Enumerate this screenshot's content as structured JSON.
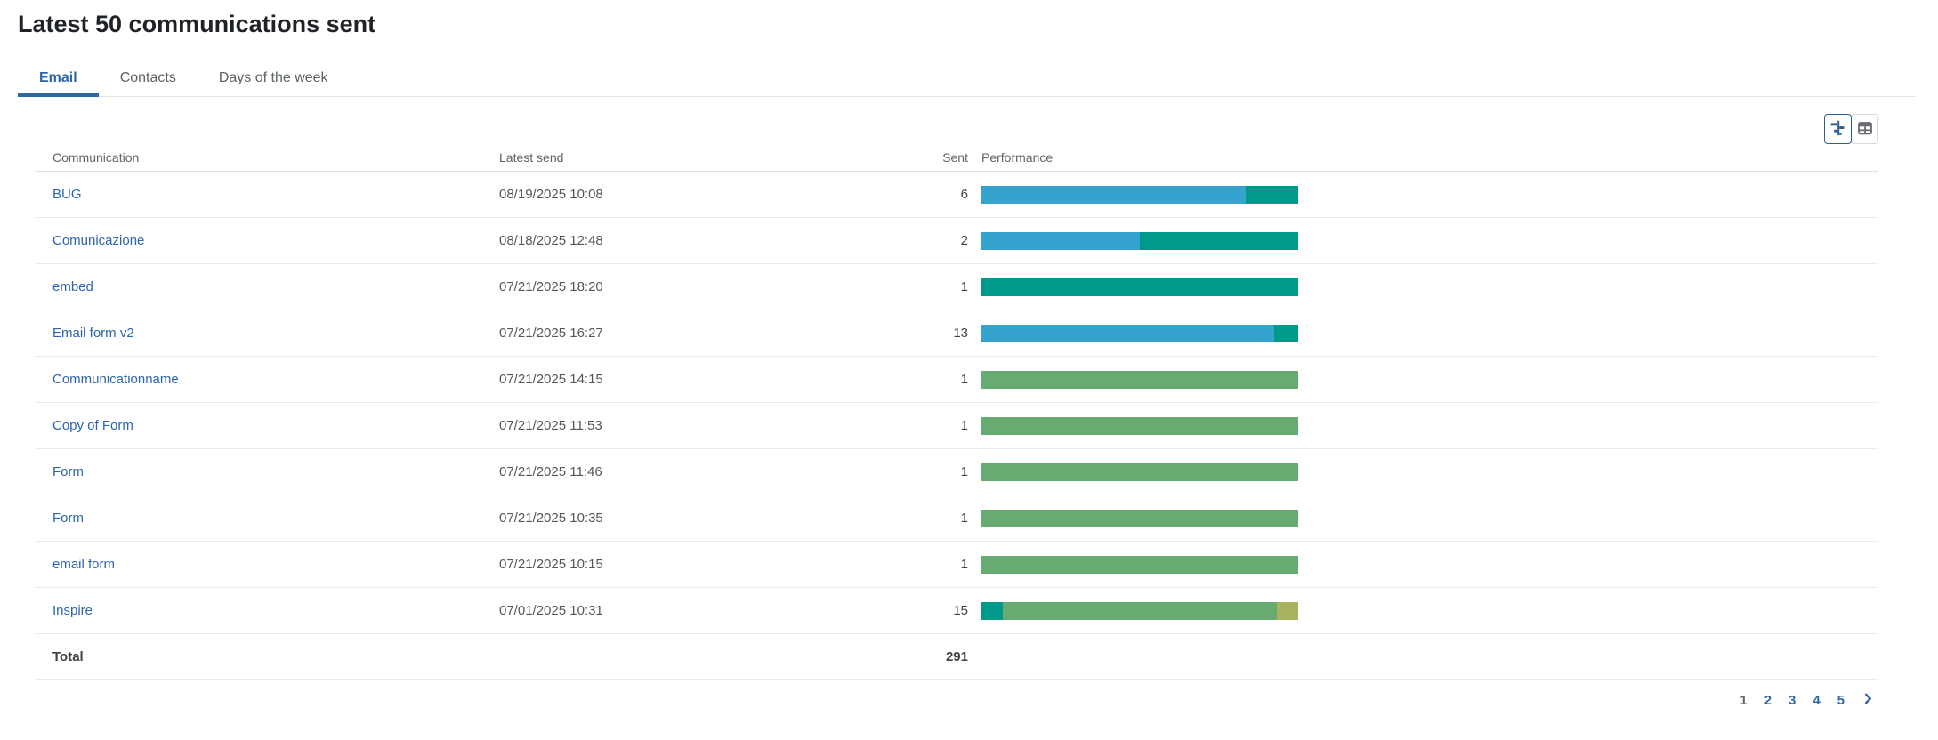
{
  "title": "Latest 50 communications sent",
  "tabs": [
    {
      "label": "Email",
      "slug": "email",
      "active": true
    },
    {
      "label": "Contacts",
      "slug": "contacts",
      "active": false
    },
    {
      "label": "Days of the week",
      "slug": "days-of-the-week",
      "active": false
    }
  ],
  "toolbar": {
    "views": [
      {
        "name": "chart-view",
        "icon": "tornado-chart-icon",
        "selected": true
      },
      {
        "name": "table-view",
        "icon": "table-grid-icon",
        "selected": false
      }
    ]
  },
  "table": {
    "columns": [
      "Communication",
      "Latest send",
      "Sent",
      "Performance"
    ],
    "rows": [
      {
        "communication": "BUG",
        "latest_send": "08/19/2025 10:08",
        "sent": "6",
        "segments": [
          {
            "status": "blue",
            "pct": 83.33
          },
          {
            "status": "teal",
            "pct": 16.67
          }
        ]
      },
      {
        "communication": "Comunicazione",
        "latest_send": "08/18/2025 12:48",
        "sent": "2",
        "segments": [
          {
            "status": "blue",
            "pct": 50
          },
          {
            "status": "teal",
            "pct": 50
          }
        ]
      },
      {
        "communication": "embed",
        "latest_send": "07/21/2025 18:20",
        "sent": "1",
        "segments": [
          {
            "status": "teal",
            "pct": 100
          }
        ]
      },
      {
        "communication": "Email form v2",
        "latest_send": "07/21/2025 16:27",
        "sent": "13",
        "segments": [
          {
            "status": "blue",
            "pct": 92.3
          },
          {
            "status": "teal",
            "pct": 7.7
          }
        ]
      },
      {
        "communication": "Communicationname",
        "latest_send": "07/21/2025 14:15",
        "sent": "1",
        "segments": [
          {
            "status": "green",
            "pct": 100
          }
        ]
      },
      {
        "communication": "Copy of Form",
        "latest_send": "07/21/2025 11:53",
        "sent": "1",
        "segments": [
          {
            "status": "green",
            "pct": 100
          }
        ]
      },
      {
        "communication": "Form",
        "latest_send": "07/21/2025 11:46",
        "sent": "1",
        "segments": [
          {
            "status": "green",
            "pct": 100
          }
        ]
      },
      {
        "communication": "Form",
        "latest_send": "07/21/2025 10:35",
        "sent": "1",
        "segments": [
          {
            "status": "green",
            "pct": 100
          }
        ]
      },
      {
        "communication": "email form",
        "latest_send": "07/21/2025 10:15",
        "sent": "1",
        "segments": [
          {
            "status": "green",
            "pct": 100
          }
        ]
      },
      {
        "communication": "Inspire",
        "latest_send": "07/01/2025 10:31",
        "sent": "15",
        "segments": [
          {
            "status": "teal",
            "pct": 6.7
          },
          {
            "status": "green",
            "pct": 86.6
          },
          {
            "status": "olive",
            "pct": 6.7
          }
        ]
      }
    ],
    "total_label": "Total",
    "total_sent": "291"
  },
  "pagination": {
    "current": "1",
    "pages": [
      "1",
      "2",
      "3",
      "4",
      "5"
    ]
  },
  "colors": {
    "blue": "#36a3cf",
    "teal": "#009a8d",
    "green": "#67aa72",
    "olive": "#a9b25f",
    "link": "#2d66ad",
    "tab_active": "#2c67a8"
  }
}
